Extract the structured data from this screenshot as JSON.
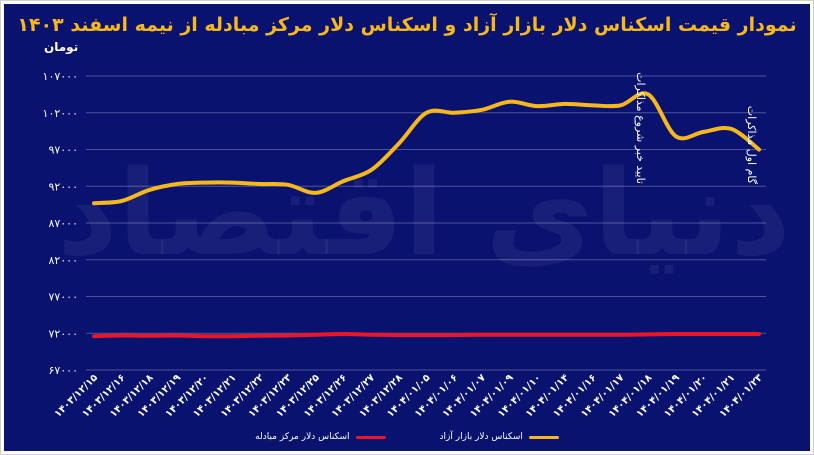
{
  "chart_data": {
    "type": "line",
    "title": "نمودار قیمت اسکناس دلار بازار آزاد و اسکناس دلار مرکز مبادله از نیمه اسفند ۱۴۰۳",
    "ylabel": "تومان",
    "xlabel": "",
    "ylim": [
      67000,
      107000
    ],
    "yticks": [
      67000,
      72000,
      77000,
      82000,
      87000,
      92000,
      97000,
      102000,
      107000
    ],
    "ytick_labels": [
      "۶۷۰۰۰",
      "۷۲۰۰۰",
      "۷۷۰۰۰",
      "۸۲۰۰۰",
      "۸۷۰۰۰",
      "۹۲۰۰۰",
      "۹۷۰۰۰",
      "۱۰۲۰۰۰",
      "۱۰۷۰۰۰"
    ],
    "categories": [
      "۱۴۰۳/۱۲/۱۵",
      "۱۴۰۳/۱۲/۱۶",
      "۱۴۰۳/۱۲/۱۸",
      "۱۴۰۳/۱۲/۱۹",
      "۱۴۰۳/۱۲/۲۰",
      "۱۴۰۳/۱۲/۲۱",
      "۱۴۰۳/۱۲/۲۲",
      "۱۴۰۳/۱۲/۲۳",
      "۱۴۰۳/۱۲/۲۵",
      "۱۴۰۳/۱۲/۲۶",
      "۱۴۰۳/۱۲/۲۷",
      "۱۴۰۳/۱۲/۲۸",
      "۱۴۰۴/۰۱/۰۵",
      "۱۴۰۴/۰۱/۰۶",
      "۱۴۰۴/۰۱/۰۷",
      "۱۴۰۴/۰۱/۰۹",
      "۱۴۰۴/۰۱/۱۰",
      "۱۴۰۴/۰۱/۱۴",
      "۱۴۰۴/۰۱/۱۶",
      "۱۴۰۴/۰۱/۱۷",
      "۱۴۰۴/۰۱/۱۸",
      "۱۴۰۴/۰۱/۱۹",
      "۱۴۰۴/۰۱/۲۰",
      "۱۴۰۴/۰۱/۲۱",
      "۱۴۰۴/۰۱/۲۳"
    ],
    "series": [
      {
        "name": "اسکناس دلار بازار آزاد",
        "color": "#f6b81a",
        "values": [
          89700,
          90000,
          91500,
          92300,
          92500,
          92500,
          92300,
          92200,
          91100,
          92700,
          94200,
          97800,
          102000,
          102000,
          102400,
          103500,
          102900,
          103200,
          103000,
          103000,
          104500,
          98800,
          99400,
          99800,
          97000
        ]
      },
      {
        "name": "اسکناس دلار مرکز مبادله",
        "color": "#e8162a",
        "values": [
          71600,
          71700,
          71650,
          71700,
          71600,
          71600,
          71650,
          71700,
          71800,
          71900,
          71800,
          71750,
          71750,
          71750,
          71800,
          71800,
          71800,
          71800,
          71800,
          71800,
          71850,
          71900,
          71900,
          71900,
          71900
        ]
      }
    ],
    "annotations": [
      {
        "category_index": 20,
        "text": "تایید خبر شروع مذاکرات"
      },
      {
        "category_index": 24,
        "text": "گام اول مذاکرات"
      }
    ],
    "watermark": "دنیای اقتصاد",
    "grid": "horizontal",
    "legend_position": "bottom"
  }
}
